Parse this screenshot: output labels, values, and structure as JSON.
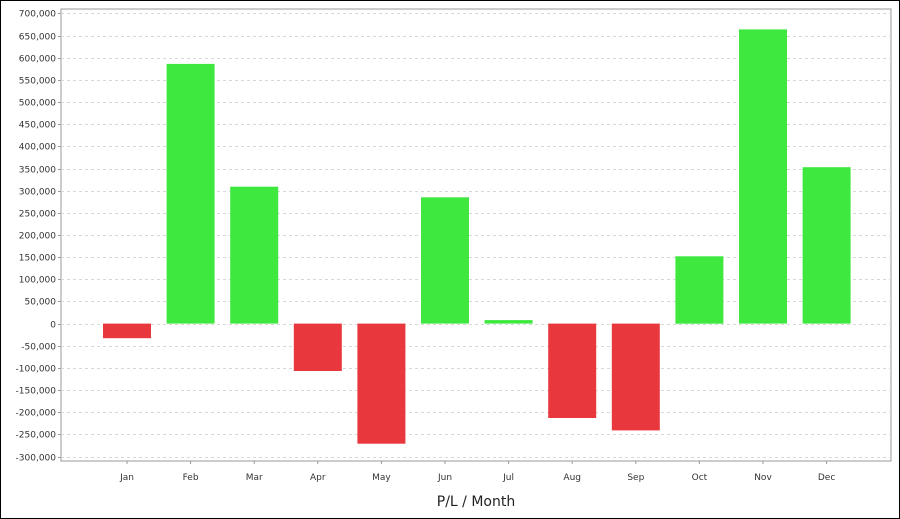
{
  "chart_data": {
    "type": "bar",
    "title": "",
    "xlabel": "P/L / Month",
    "ylabel": "",
    "categories": [
      "Jan",
      "Feb",
      "Mar",
      "Apr",
      "May",
      "Jun",
      "Jul",
      "Aug",
      "Sep",
      "Oct",
      "Nov",
      "Dec"
    ],
    "series": [
      {
        "values": [
          -33000,
          586000,
          309000,
          -107000,
          -271000,
          285000,
          8000,
          -213000,
          -241000,
          152000,
          664000,
          353000
        ]
      }
    ],
    "ylim": [
      -310000,
      710000
    ],
    "yticks": [
      700000,
      650000,
      600000,
      550000,
      500000,
      450000,
      400000,
      350000,
      300000,
      250000,
      200000,
      150000,
      100000,
      50000,
      0,
      -50000,
      -100000,
      -150000,
      -200000,
      -250000,
      -300000
    ],
    "ytick_labels": [
      "700,000",
      "650,000",
      "600,000",
      "550,000",
      "500,000",
      "450,000",
      "400,000",
      "350,000",
      "300,000",
      "250,000",
      "200,000",
      "150,000",
      "100,000",
      "50,000",
      "0",
      "-50,000",
      "-100,000",
      "-150,000",
      "-200,000",
      "-250,000",
      "-300,000"
    ],
    "grid": true,
    "legend": "none",
    "colors": {
      "positive": "#3fe83f",
      "negative": "#e8383d",
      "grid": "#d8d8d8",
      "axis": "#999999"
    }
  }
}
